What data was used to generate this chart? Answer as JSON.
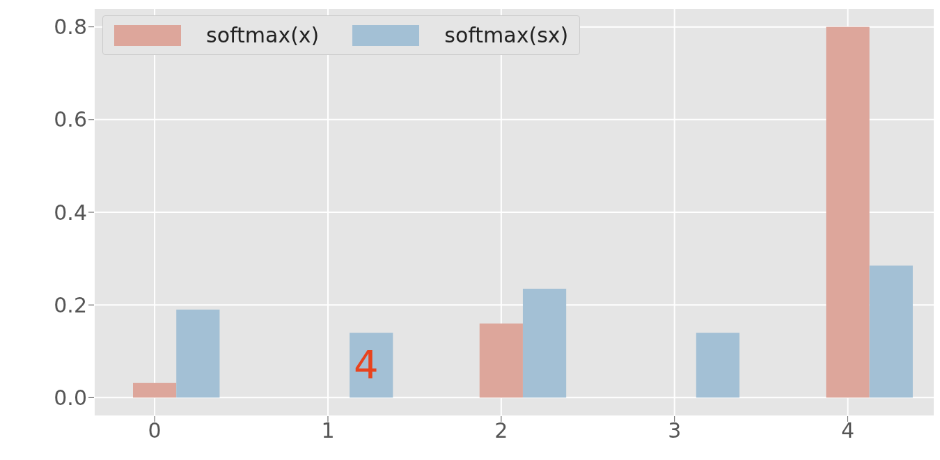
{
  "chart_data": {
    "type": "bar",
    "x": [
      0,
      1,
      2,
      3,
      4
    ],
    "series": [
      {
        "name": "softmax(x)",
        "color": "#dda69b",
        "values": [
          0.032,
          0,
          0.16,
          0,
          0.8
        ]
      },
      {
        "name": "softmax(sx)",
        "color": "#a3c0d5",
        "values": [
          0.19,
          0.14,
          0.235,
          0.14,
          0.285
        ]
      }
    ],
    "xlim": [
      -0.35,
      4.5
    ],
    "xticks": [
      0,
      1,
      2,
      3,
      4
    ],
    "ylim": [
      -0.04,
      0.84
    ],
    "yticks": [
      {
        "value": 0,
        "label": "0.0"
      },
      {
        "value": 0.2,
        "label": "0.2"
      },
      {
        "value": 0.4,
        "label": "0.4"
      },
      {
        "value": 0.6,
        "label": "0.6"
      },
      {
        "value": 0.8,
        "label": "0.8"
      }
    ],
    "grid": true,
    "legend": "top left",
    "annotations": [
      "4"
    ]
  }
}
